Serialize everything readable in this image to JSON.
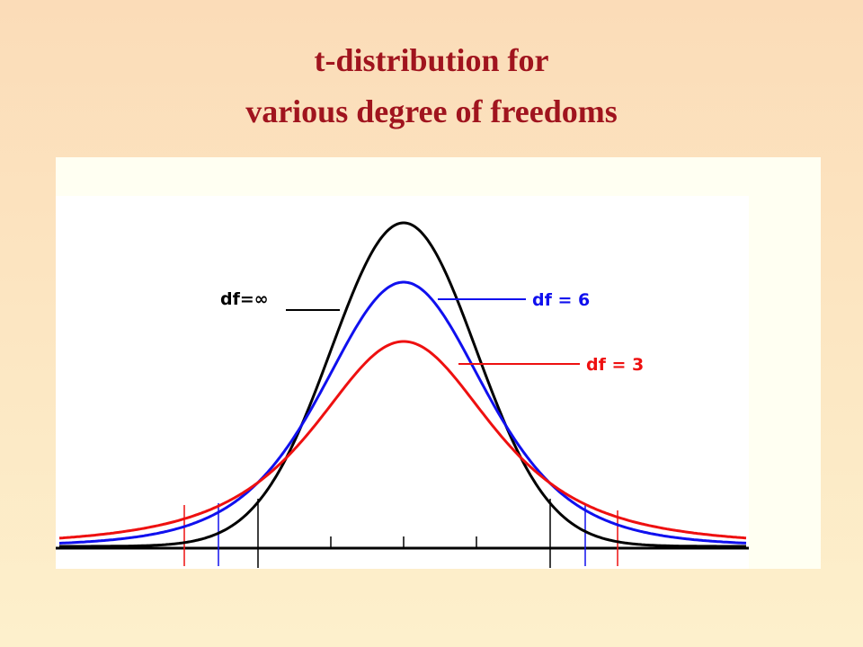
{
  "title": {
    "line1": "t-distribution for",
    "line2": "various degree of freedoms"
  },
  "labels": {
    "df_infinity": "df=∞",
    "df_6": "df = 6",
    "df_3": "df = 3"
  }
}
